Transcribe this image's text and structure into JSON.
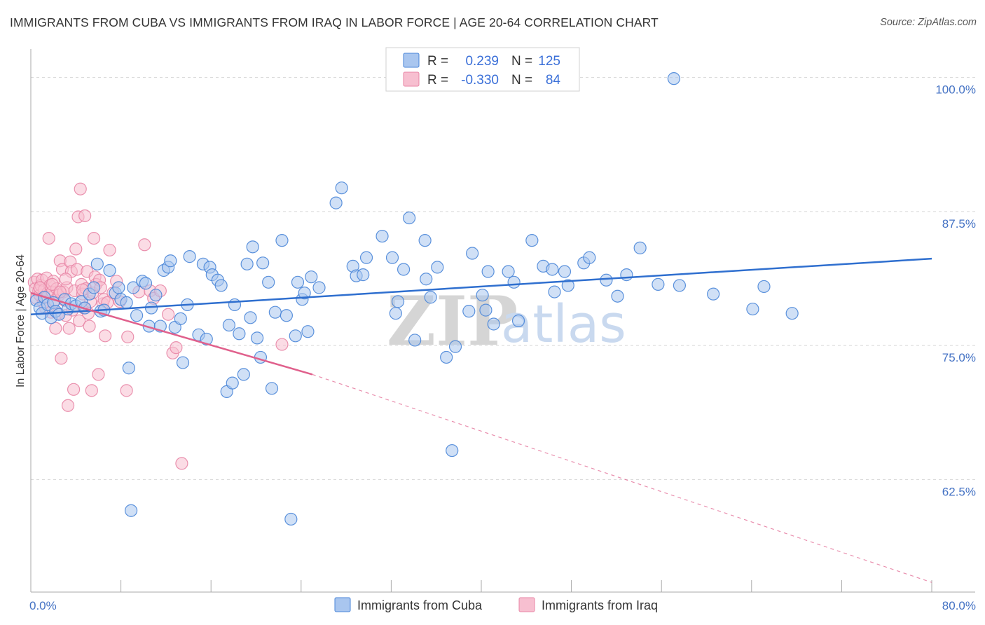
{
  "title": "IMMIGRANTS FROM CUBA VS IMMIGRANTS FROM IRAQ IN LABOR FORCE | AGE 20-64 CORRELATION CHART",
  "source": "Source: ZipAtlas.com",
  "watermark": {
    "zip": "ZIP",
    "atlas": "atlas"
  },
  "colors": {
    "cuba_fill": "#a9c6ef",
    "cuba_stroke": "#4a86d8",
    "cuba_line": "#2f6fcf",
    "iraq_fill": "#f7bfd0",
    "iraq_stroke": "#e886a6",
    "iraq_line": "#e0608c",
    "grid": "#d6d6d6",
    "tick_text": "#4472c4"
  },
  "legend": {
    "rows": [
      {
        "r_label": "R =",
        "r_value": "0.239",
        "n_label": "N =",
        "n_value": "125"
      },
      {
        "r_label": "R =",
        "r_value": "-0.330",
        "n_label": "N =",
        "n_value": "84"
      }
    ]
  },
  "chart_data": {
    "type": "scatter",
    "title": "IMMIGRANTS FROM CUBA VS IMMIGRANTS FROM IRAQ IN LABOR FORCE | AGE 20-64 CORRELATION CHART",
    "xlabel": "",
    "ylabel": "In Labor Force | Age 20-64",
    "xlim": [
      0,
      80
    ],
    "ylim": [
      52,
      102
    ],
    "x_tick_labels": [
      {
        "value": 0,
        "label": "0.0%"
      },
      {
        "value": 80,
        "label": "80.0%"
      }
    ],
    "y_ticks": [
      {
        "value": 100,
        "label": "100.0%"
      },
      {
        "value": 87.5,
        "label": "87.5%"
      },
      {
        "value": 75,
        "label": "75.0%"
      },
      {
        "value": 62.5,
        "label": "62.5%"
      }
    ],
    "x_minor_ticks": [
      8,
      16,
      24,
      32,
      40,
      48,
      56,
      64,
      72,
      80
    ],
    "series": [
      {
        "name": "Immigrants from Cuba",
        "R": 0.239,
        "N": 125,
        "trend": {
          "x0": 0,
          "y0": 77.9,
          "x1": 80,
          "y1": 83.1
        },
        "points": [
          [
            0.5,
            79.2
          ],
          [
            0.8,
            78.5
          ],
          [
            1.0,
            78.0
          ],
          [
            1.2,
            79.5
          ],
          [
            1.5,
            78.8
          ],
          [
            1.8,
            77.6
          ],
          [
            2.0,
            79.0
          ],
          [
            2.2,
            78.2
          ],
          [
            2.5,
            77.9
          ],
          [
            3.0,
            79.3
          ],
          [
            3.3,
            78.4
          ],
          [
            3.6,
            78.9
          ],
          [
            4.0,
            78.7
          ],
          [
            4.5,
            79.1
          ],
          [
            4.8,
            78.5
          ],
          [
            5.2,
            79.8
          ],
          [
            5.6,
            80.4
          ],
          [
            5.9,
            82.6
          ],
          [
            6.2,
            78.2
          ],
          [
            6.5,
            78.3
          ],
          [
            7.0,
            82.0
          ],
          [
            7.5,
            79.9
          ],
          [
            7.8,
            80.4
          ],
          [
            8.0,
            79.3
          ],
          [
            8.5,
            79.0
          ],
          [
            8.7,
            72.9
          ],
          [
            9.1,
            80.4
          ],
          [
            9.4,
            77.8
          ],
          [
            9.9,
            81.0
          ],
          [
            10.2,
            80.8
          ],
          [
            10.5,
            76.8
          ],
          [
            10.7,
            78.5
          ],
          [
            11.1,
            79.7
          ],
          [
            11.5,
            76.8
          ],
          [
            11.8,
            82.0
          ],
          [
            12.2,
            82.3
          ],
          [
            12.4,
            82.9
          ],
          [
            12.8,
            76.7
          ],
          [
            13.3,
            77.5
          ],
          [
            13.5,
            73.4
          ],
          [
            13.9,
            78.8
          ],
          [
            14.1,
            83.3
          ],
          [
            14.9,
            76.0
          ],
          [
            15.3,
            82.6
          ],
          [
            15.6,
            75.6
          ],
          [
            15.9,
            82.3
          ],
          [
            16.1,
            81.6
          ],
          [
            16.6,
            81.1
          ],
          [
            16.9,
            80.6
          ],
          [
            17.4,
            70.7
          ],
          [
            17.6,
            76.9
          ],
          [
            17.9,
            71.5
          ],
          [
            18.1,
            78.8
          ],
          [
            18.5,
            76.1
          ],
          [
            18.9,
            72.3
          ],
          [
            19.2,
            82.6
          ],
          [
            19.5,
            77.6
          ],
          [
            19.7,
            84.2
          ],
          [
            20.1,
            75.7
          ],
          [
            20.4,
            73.9
          ],
          [
            20.6,
            82.7
          ],
          [
            21.1,
            80.9
          ],
          [
            21.4,
            71.0
          ],
          [
            21.7,
            78.1
          ],
          [
            22.3,
            84.8
          ],
          [
            22.7,
            77.8
          ],
          [
            23.1,
            58.8
          ],
          [
            23.5,
            75.9
          ],
          [
            23.7,
            80.9
          ],
          [
            24.1,
            79.3
          ],
          [
            24.3,
            79.9
          ],
          [
            24.6,
            76.3
          ],
          [
            24.9,
            81.4
          ],
          [
            25.6,
            80.4
          ],
          [
            27.1,
            88.3
          ],
          [
            27.6,
            89.7
          ],
          [
            28.6,
            82.4
          ],
          [
            28.9,
            81.5
          ],
          [
            29.5,
            81.6
          ],
          [
            29.8,
            83.2
          ],
          [
            31.2,
            85.2
          ],
          [
            32.1,
            83.2
          ],
          [
            32.4,
            78.0
          ],
          [
            32.6,
            79.1
          ],
          [
            33.1,
            82.1
          ],
          [
            33.6,
            86.9
          ],
          [
            34.1,
            75.5
          ],
          [
            35.0,
            84.8
          ],
          [
            35.1,
            81.2
          ],
          [
            35.5,
            79.5
          ],
          [
            36.1,
            82.3
          ],
          [
            36.9,
            73.9
          ],
          [
            37.4,
            65.2
          ],
          [
            37.7,
            74.9
          ],
          [
            38.9,
            78.2
          ],
          [
            39.2,
            83.6
          ],
          [
            40.1,
            79.7
          ],
          [
            40.4,
            78.3
          ],
          [
            40.6,
            81.9
          ],
          [
            41.1,
            77.0
          ],
          [
            42.4,
            81.9
          ],
          [
            42.9,
            80.9
          ],
          [
            43.3,
            77.3
          ],
          [
            44.5,
            84.8
          ],
          [
            45.5,
            82.4
          ],
          [
            46.3,
            82.1
          ],
          [
            46.5,
            80.0
          ],
          [
            47.4,
            81.9
          ],
          [
            47.7,
            80.6
          ],
          [
            49.1,
            82.7
          ],
          [
            49.6,
            83.2
          ],
          [
            51.1,
            81.1
          ],
          [
            52.1,
            79.6
          ],
          [
            52.9,
            81.6
          ],
          [
            54.1,
            84.1
          ],
          [
            55.7,
            80.7
          ],
          [
            57.1,
            99.9
          ],
          [
            57.6,
            80.6
          ],
          [
            60.6,
            79.8
          ],
          [
            64.1,
            78.4
          ],
          [
            65.1,
            80.5
          ],
          [
            67.6,
            78.0
          ],
          [
            8.9,
            59.6
          ]
        ]
      },
      {
        "name": "Immigrants from Iraq",
        "R": -0.33,
        "N": 84,
        "trend": {
          "x0": 0,
          "y0": 79.9,
          "x1": 25,
          "y1": 72.3
        },
        "trend_dashed": {
          "x0": 25,
          "y0": 72.3,
          "x1": 80,
          "y1": 52.9
        },
        "points": [
          [
            0.3,
            80.9
          ],
          [
            0.4,
            80.3
          ],
          [
            0.5,
            79.4
          ],
          [
            0.6,
            81.2
          ],
          [
            0.7,
            80.1
          ],
          [
            0.8,
            79.7
          ],
          [
            0.9,
            80.6
          ],
          [
            1.0,
            81.1
          ],
          [
            1.1,
            79.0
          ],
          [
            1.2,
            80.2
          ],
          [
            1.3,
            78.5
          ],
          [
            1.4,
            81.3
          ],
          [
            1.5,
            79.9
          ],
          [
            1.6,
            85.0
          ],
          [
            1.7,
            80.6
          ],
          [
            1.8,
            78.1
          ],
          [
            1.9,
            80.0
          ],
          [
            2.0,
            81.0
          ],
          [
            2.1,
            79.2
          ],
          [
            2.2,
            76.6
          ],
          [
            2.3,
            80.3
          ],
          [
            2.4,
            78.0
          ],
          [
            2.5,
            79.7
          ],
          [
            2.6,
            82.9
          ],
          [
            2.7,
            73.8
          ],
          [
            2.8,
            82.1
          ],
          [
            2.9,
            80.0
          ],
          [
            3.0,
            79.2
          ],
          [
            3.1,
            77.8
          ],
          [
            3.2,
            80.4
          ],
          [
            3.3,
            69.4
          ],
          [
            3.4,
            76.6
          ],
          [
            3.5,
            82.8
          ],
          [
            3.6,
            81.9
          ],
          [
            3.7,
            78.3
          ],
          [
            3.8,
            70.9
          ],
          [
            3.9,
            80.1
          ],
          [
            4.0,
            84.0
          ],
          [
            4.1,
            82.1
          ],
          [
            4.2,
            87.0
          ],
          [
            4.3,
            77.3
          ],
          [
            4.4,
            89.6
          ],
          [
            4.5,
            80.7
          ],
          [
            4.6,
            79.8
          ],
          [
            4.7,
            78.5
          ],
          [
            4.8,
            87.1
          ],
          [
            4.9,
            80.3
          ],
          [
            5.0,
            81.9
          ],
          [
            5.1,
            78.0
          ],
          [
            5.2,
            76.8
          ],
          [
            5.3,
            79.1
          ],
          [
            5.4,
            70.8
          ],
          [
            5.5,
            79.9
          ],
          [
            5.6,
            85.0
          ],
          [
            5.7,
            81.4
          ],
          [
            5.8,
            80.7
          ],
          [
            6.0,
            72.3
          ],
          [
            6.1,
            81.1
          ],
          [
            6.2,
            80.4
          ],
          [
            6.4,
            78.9
          ],
          [
            6.5,
            79.3
          ],
          [
            6.6,
            75.9
          ],
          [
            7.0,
            83.9
          ],
          [
            7.3,
            79.9
          ],
          [
            7.6,
            81.0
          ],
          [
            7.9,
            79.1
          ],
          [
            8.5,
            70.8
          ],
          [
            8.6,
            75.8
          ],
          [
            9.6,
            80.0
          ],
          [
            10.1,
            84.4
          ],
          [
            10.6,
            80.1
          ],
          [
            10.9,
            79.4
          ],
          [
            11.5,
            80.1
          ],
          [
            12.2,
            77.9
          ],
          [
            12.6,
            74.3
          ],
          [
            12.9,
            74.8
          ],
          [
            13.4,
            64.0
          ],
          [
            22.3,
            75.1
          ],
          [
            3.1,
            81.2
          ],
          [
            1.9,
            80.7
          ],
          [
            2.6,
            80.0
          ],
          [
            0.8,
            80.4
          ],
          [
            6.8,
            79.0
          ],
          [
            4.6,
            80.2
          ]
        ]
      }
    ],
    "bottom_legend": [
      "Immigrants from Cuba",
      "Immigrants from Iraq"
    ]
  }
}
